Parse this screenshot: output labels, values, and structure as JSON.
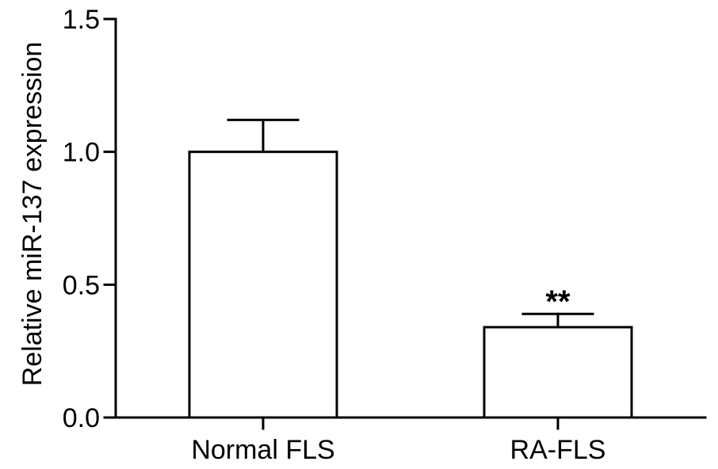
{
  "chart_data": {
    "type": "bar",
    "title": "",
    "xlabel": "",
    "ylabel": "Relative miR-137 expression",
    "ylim": [
      0,
      1.5
    ],
    "yticks": [
      0,
      0.5,
      1.0,
      1.5
    ],
    "ytick_labels": [
      "0.0",
      "0.5",
      "1.0",
      "1.5"
    ],
    "categories": [
      "Normal FLS",
      "RA-FLS"
    ],
    "values": [
      1.0,
      0.34
    ],
    "error_upper": [
      0.12,
      0.05
    ],
    "annotations": [
      "",
      "**"
    ],
    "bar_fill": "#ffffff",
    "bar_stroke": "#000000",
    "grid": false,
    "legend": "none"
  }
}
